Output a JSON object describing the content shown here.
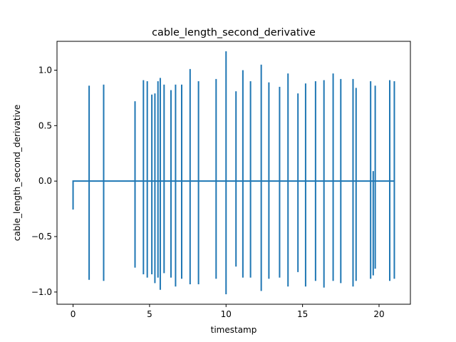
{
  "chart_data": {
    "type": "line",
    "title": "cable_length_second_derivative",
    "xlabel": "timestamp",
    "ylabel": "cable_length_second_derivative",
    "xlim": [
      -1.05,
      22.05
    ],
    "ylim": [
      -1.11,
      1.26
    ],
    "xticks": [
      0,
      5,
      10,
      15,
      20
    ],
    "yticks": [
      -1.0,
      -0.5,
      0.0,
      0.5,
      1.0
    ],
    "ytick_labels": [
      "−1.0",
      "−0.5",
      "0.0",
      "0.5",
      "1.0"
    ],
    "grid": false,
    "line_color": "#1f77b4",
    "start_value": -0.25,
    "series": [
      {
        "spikes": [
          {
            "x": 1.05,
            "pos": 0.86,
            "neg": -0.89
          },
          {
            "x": 2.0,
            "pos": 0.87,
            "neg": -0.9
          },
          {
            "x": 4.05,
            "pos": 0.72,
            "neg": -0.78
          },
          {
            "x": 4.6,
            "pos": 0.91,
            "neg": -0.84
          },
          {
            "x": 4.85,
            "pos": 0.9,
            "neg": -0.87
          },
          {
            "x": 5.15,
            "pos": 0.78,
            "neg": -0.84
          },
          {
            "x": 5.35,
            "pos": 0.79,
            "neg": -0.92
          },
          {
            "x": 5.55,
            "pos": 0.9,
            "neg": -0.87
          },
          {
            "x": 5.7,
            "pos": 0.93,
            "neg": -0.98
          },
          {
            "x": 5.95,
            "pos": 0.87,
            "neg": -0.83
          },
          {
            "x": 6.4,
            "pos": 0.82,
            "neg": -0.87
          },
          {
            "x": 6.7,
            "pos": 0.87,
            "neg": -0.95
          },
          {
            "x": 7.1,
            "pos": 0.87,
            "neg": -0.88
          },
          {
            "x": 7.65,
            "pos": 1.01,
            "neg": -0.93
          },
          {
            "x": 8.2,
            "pos": 0.9,
            "neg": -0.93
          },
          {
            "x": 9.35,
            "pos": 0.92,
            "neg": -0.88
          },
          {
            "x": 10.0,
            "pos": 1.17,
            "neg": -1.02
          },
          {
            "x": 10.65,
            "pos": 0.81,
            "neg": -0.77
          },
          {
            "x": 11.1,
            "pos": 1.0,
            "neg": -0.87
          },
          {
            "x": 11.6,
            "pos": 0.9,
            "neg": -0.87
          },
          {
            "x": 12.3,
            "pos": 1.05,
            "neg": -0.99
          },
          {
            "x": 12.8,
            "pos": 0.89,
            "neg": -0.88
          },
          {
            "x": 13.5,
            "pos": 0.85,
            "neg": -0.87
          },
          {
            "x": 14.05,
            "pos": 0.97,
            "neg": -0.95
          },
          {
            "x": 14.7,
            "pos": 0.79,
            "neg": -0.82
          },
          {
            "x": 15.2,
            "pos": 0.88,
            "neg": -0.95
          },
          {
            "x": 15.85,
            "pos": 0.9,
            "neg": -0.9
          },
          {
            "x": 16.4,
            "pos": 0.91,
            "neg": -0.96
          },
          {
            "x": 17.0,
            "pos": 0.97,
            "neg": -0.9
          },
          {
            "x": 17.5,
            "pos": 0.92,
            "neg": -0.92
          },
          {
            "x": 18.3,
            "pos": 0.92,
            "neg": -0.95
          },
          {
            "x": 18.5,
            "pos": 0.84,
            "neg": -0.9
          },
          {
            "x": 19.45,
            "pos": 0.9,
            "neg": -0.88
          },
          {
            "x": 19.62,
            "pos": 0.09,
            "neg": -0.85
          },
          {
            "x": 19.75,
            "pos": 0.86,
            "neg": -0.79
          },
          {
            "x": 20.7,
            "pos": 0.91,
            "neg": -0.9
          },
          {
            "x": 21.0,
            "pos": 0.9,
            "neg": -0.88
          }
        ],
        "end_x": 21.0
      }
    ]
  }
}
